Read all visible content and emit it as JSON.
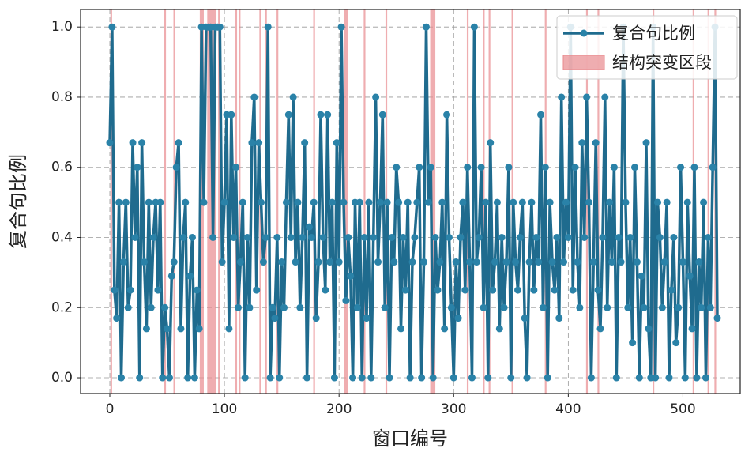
{
  "chart_data": {
    "type": "line",
    "xlabel": "窗口编号",
    "ylabel": "复合句比例",
    "xlim": [
      -25.5,
      550
    ],
    "ylim": [
      -0.045,
      1.05
    ],
    "xticks": [
      0,
      100,
      200,
      300,
      400,
      500
    ],
    "yticks": [
      {
        "value": 0,
        "label": "0.0"
      },
      0.2,
      0.4,
      0.6,
      0.8,
      {
        "value": 1,
        "label": "1.0"
      }
    ],
    "grid": true,
    "legend": "upper right",
    "x": [
      0,
      2,
      4,
      6,
      8,
      10,
      12,
      14,
      16,
      18,
      20,
      22,
      24,
      26,
      28,
      30,
      32,
      34,
      36,
      38,
      40,
      42,
      44,
      46,
      48,
      50,
      52,
      54,
      56,
      58,
      60,
      62,
      64,
      66,
      68,
      70,
      72,
      74,
      76,
      78,
      80,
      82,
      84,
      86,
      88,
      90,
      92,
      94,
      96,
      98,
      100,
      102,
      104,
      106,
      108,
      110,
      112,
      114,
      116,
      118,
      120,
      122,
      124,
      126,
      128,
      130,
      132,
      134,
      136,
      138,
      140,
      142,
      144,
      146,
      148,
      150,
      152,
      154,
      156,
      158,
      160,
      162,
      164,
      166,
      168,
      170,
      172,
      174,
      176,
      178,
      180,
      182,
      184,
      186,
      188,
      190,
      192,
      194,
      196,
      198,
      200,
      202,
      204,
      206,
      208,
      210,
      212,
      214,
      216,
      218,
      220,
      222,
      224,
      226,
      228,
      230,
      232,
      234,
      236,
      238,
      240,
      242,
      244,
      246,
      248,
      250,
      252,
      254,
      256,
      258,
      260,
      262,
      264,
      266,
      268,
      270,
      272,
      274,
      276,
      278,
      280,
      282,
      284,
      286,
      288,
      290,
      292,
      294,
      296,
      298,
      300,
      302,
      304,
      306,
      308,
      310,
      312,
      314,
      316,
      318,
      320,
      322,
      324,
      326,
      328,
      330,
      332,
      334,
      336,
      338,
      340,
      342,
      344,
      346,
      348,
      350,
      352,
      354,
      356,
      358,
      360,
      362,
      364,
      366,
      368,
      370,
      372,
      374,
      376,
      378,
      380,
      382,
      384,
      386,
      388,
      390,
      392,
      394,
      396,
      398,
      400,
      402,
      404,
      406,
      408,
      410,
      412,
      414,
      416,
      418,
      420,
      422,
      424,
      426,
      428,
      430,
      432,
      434,
      436,
      438,
      440,
      442,
      444,
      446,
      448,
      450,
      452,
      454,
      456,
      458,
      460,
      462,
      464,
      466,
      468,
      470,
      472,
      474,
      476,
      478,
      480,
      482,
      484,
      486,
      488,
      490,
      492,
      494,
      496,
      498,
      500,
      502,
      504,
      506,
      508,
      510,
      512,
      514,
      516,
      518,
      520,
      522,
      524,
      526,
      528,
      530
    ],
    "series": [
      {
        "name": "复合句比例",
        "color": "#1f6b8e",
        "marker_color": "#2a82a8",
        "values": [
          0.67,
          1.0,
          0.25,
          0.17,
          0.5,
          0.0,
          0.33,
          0.5,
          0.2,
          0.25,
          0.67,
          0.4,
          0.6,
          0.0,
          0.67,
          0.33,
          0.14,
          0.5,
          0.2,
          0.4,
          0.5,
          0.25,
          0.5,
          0.0,
          0.2,
          0.14,
          0.0,
          0.29,
          0.33,
          0.6,
          0.67,
          0.14,
          0.4,
          0.5,
          0.0,
          0.29,
          0.4,
          0.0,
          0.25,
          0.14,
          1.0,
          0.5,
          1.0,
          1.0,
          1.0,
          0.4,
          1.0,
          1.0,
          1.0,
          0.33,
          0.5,
          0.75,
          0.14,
          0.75,
          0.4,
          0.6,
          0.2,
          0.33,
          0.5,
          0.0,
          0.4,
          0.2,
          0.67,
          0.8,
          0.25,
          0.67,
          0.5,
          0.33,
          0.4,
          1.0,
          0.0,
          0.2,
          0.17,
          0.4,
          0.0,
          0.33,
          0.2,
          0.5,
          0.75,
          0.4,
          0.8,
          0.33,
          0.5,
          0.2,
          0.4,
          0.67,
          0.0,
          0.43,
          0.4,
          0.5,
          0.17,
          0.33,
          0.75,
          0.4,
          0.25,
          0.75,
          0.33,
          0.5,
          0.0,
          0.67,
          0.33,
          1.0,
          0.5,
          0.22,
          0.4,
          0.29,
          0.0,
          0.5,
          0.2,
          0.5,
          0.0,
          0.4,
          0.17,
          0.5,
          0.0,
          0.4,
          0.8,
          0.33,
          0.5,
          0.75,
          0.2,
          0.5,
          0.0,
          0.4,
          0.33,
          0.6,
          0.5,
          0.14,
          0.4,
          0.25,
          0.5,
          0.0,
          0.33,
          0.4,
          0.5,
          0.6,
          0.0,
          0.33,
          1.0,
          0.5,
          0.6,
          0.0,
          0.4,
          0.25,
          0.33,
          0.5,
          0.14,
          0.75,
          0.4,
          0.2,
          0.0,
          0.33,
          0.17,
          0.4,
          0.5,
          0.25,
          0.6,
          0.33,
          0.0,
          1.0,
          0.33,
          0.4,
          0.6,
          0.2,
          0.5,
          0.0,
          0.67,
          0.25,
          0.33,
          0.5,
          0.14,
          0.4,
          0.2,
          0.33,
          0.6,
          0.0,
          0.5,
          0.33,
          0.25,
          0.4,
          0.5,
          0.17,
          0.0,
          0.33,
          0.5,
          0.25,
          0.4,
          0.33,
          0.75,
          0.2,
          0.6,
          0.0,
          0.5,
          0.33,
          0.25,
          0.4,
          0.17,
          0.8,
          0.33,
          0.5,
          0.4,
          1.0,
          0.25,
          0.6,
          0.33,
          0.2,
          0.67,
          0.4,
          0.8,
          0.5,
          0.0,
          0.33,
          0.67,
          0.25,
          0.14,
          0.4,
          0.8,
          0.2,
          0.5,
          0.33,
          0.6,
          0.0,
          0.4,
          0.33,
          1.0,
          0.5,
          0.2,
          0.4,
          0.1,
          0.6,
          0.33,
          0.0,
          0.29,
          0.2,
          0.67,
          0.14,
          0.0,
          1.0,
          0.0,
          0.5,
          0.4,
          0.2,
          0.33,
          0.5,
          0.0,
          0.25,
          0.4,
          0.1,
          0.2,
          0.6,
          0.33,
          0.0,
          0.5,
          0.29,
          0.14,
          0.6,
          0.0,
          0.33,
          0.2,
          0.5,
          0.0,
          0.4,
          0.2,
          0.6,
          1.0,
          0.17
        ]
      }
    ],
    "regions": {
      "name": "结构突变区段",
      "color": "#e88a8e",
      "spans": [
        [
          0.5,
          2
        ],
        [
          47.5,
          49
        ],
        [
          55.5,
          57
        ],
        [
          78.5,
          82
        ],
        [
          85,
          93
        ],
        [
          94.5,
          96
        ],
        [
          109.5,
          111
        ],
        [
          112.5,
          114
        ],
        [
          130.5,
          132
        ],
        [
          135.5,
          137
        ],
        [
          145.5,
          147
        ],
        [
          177.5,
          179
        ],
        [
          204.5,
          208
        ],
        [
          221.5,
          223
        ],
        [
          240.5,
          242
        ],
        [
          279.5,
          284
        ],
        [
          311.5,
          313
        ],
        [
          325.5,
          327
        ],
        [
          330.5,
          332
        ],
        [
          350.5,
          352
        ],
        [
          379.5,
          381
        ],
        [
          415.5,
          417
        ],
        [
          425.5,
          427
        ],
        [
          473.5,
          475
        ],
        [
          508.5,
          510
        ],
        [
          521.5,
          523
        ],
        [
          527.5,
          529
        ]
      ]
    }
  }
}
